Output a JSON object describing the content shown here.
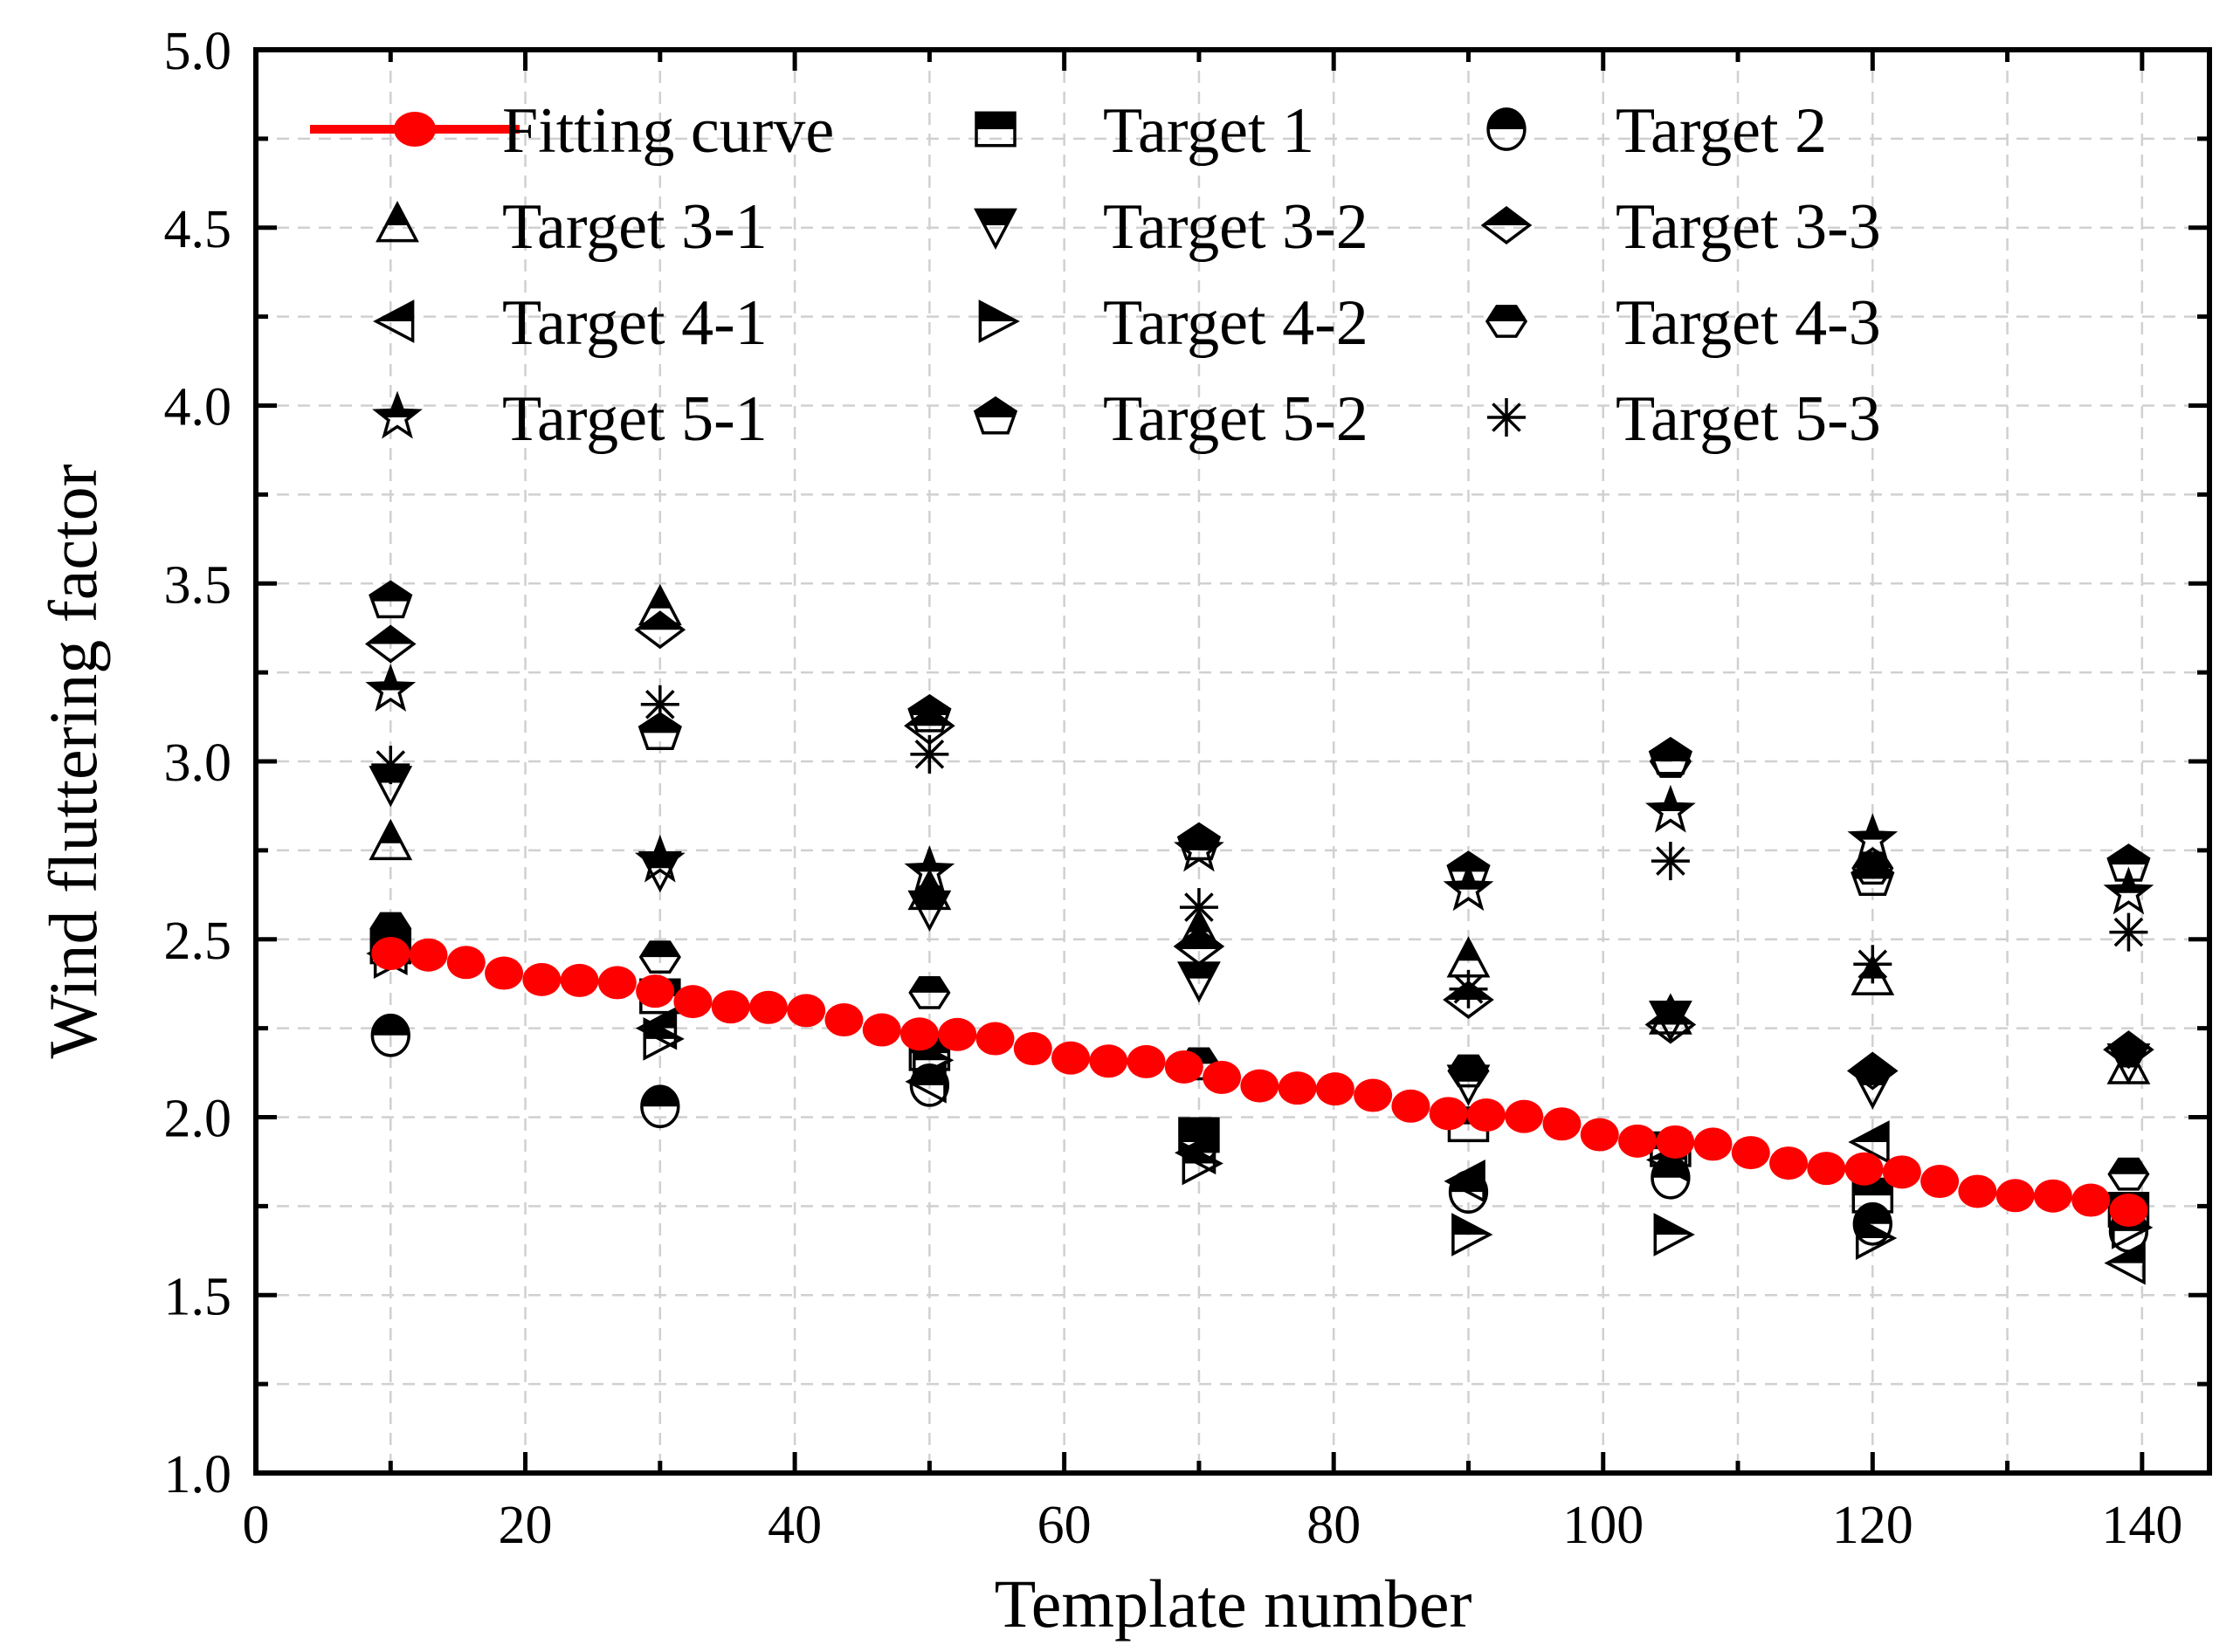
{
  "chart_data": {
    "type": "scatter",
    "xlabel": "Template number",
    "ylabel": "Wind fluttering factor",
    "xlim": [
      0,
      145
    ],
    "ylim": [
      1.0,
      5.0
    ],
    "xticks": [
      0,
      20,
      40,
      60,
      80,
      100,
      120,
      140
    ],
    "yticks": [
      1.0,
      1.5,
      2.0,
      2.5,
      3.0,
      3.5,
      4.0,
      4.5,
      5.0
    ],
    "xtick_labels": [
      "0",
      "20",
      "40",
      "60",
      "80",
      "100",
      "120",
      "140"
    ],
    "ytick_labels": [
      "1.0",
      "1.5",
      "2.0",
      "2.5",
      "3.0",
      "3.5",
      "4.0",
      "4.5",
      "5.0"
    ],
    "grid": true,
    "legend_position": "top",
    "fitting_curve": {
      "name": "Fitting curve",
      "color": "#ff0000",
      "x_start": 10,
      "y_start": 2.46,
      "x_end": 139,
      "y_end": 1.74
    },
    "series": [
      {
        "name": "Target 1",
        "marker": "square",
        "x": [
          10,
          30,
          50,
          70,
          90,
          105,
          120,
          139
        ],
        "y": [
          2.48,
          2.34,
          2.18,
          1.95,
          1.98,
          1.91,
          1.78,
          1.74
        ]
      },
      {
        "name": "Target 2",
        "marker": "circle",
        "x": [
          10,
          30,
          50,
          70,
          90,
          105,
          120,
          139
        ],
        "y": [
          2.23,
          2.03,
          2.09,
          1.93,
          1.79,
          1.83,
          1.7,
          1.68
        ]
      },
      {
        "name": "Target 3-1",
        "marker": "tri-up",
        "x": [
          10,
          30,
          50,
          70,
          90,
          105,
          120,
          139
        ],
        "y": [
          2.77,
          3.43,
          2.63,
          2.52,
          2.44,
          2.28,
          2.39,
          2.14
        ]
      },
      {
        "name": "Target 3-2",
        "marker": "tri-down",
        "x": [
          10,
          30,
          50,
          70,
          90,
          105,
          120,
          139
        ],
        "y": [
          2.94,
          2.7,
          2.59,
          2.39,
          2.1,
          2.28,
          2.09,
          2.16
        ]
      },
      {
        "name": "Target 3-3",
        "marker": "diamond",
        "x": [
          10,
          30,
          50,
          70,
          90,
          105,
          120,
          139
        ],
        "y": [
          3.33,
          3.37,
          3.1,
          2.48,
          2.33,
          2.26,
          2.13,
          2.19
        ]
      },
      {
        "name": "Target 4-1",
        "marker": "tri-left",
        "x": [
          10,
          30,
          50,
          70,
          90,
          105,
          120,
          139
        ],
        "y": [
          2.46,
          2.25,
          2.1,
          1.9,
          1.82,
          1.88,
          1.93,
          1.59
        ]
      },
      {
        "name": "Target 4-2",
        "marker": "tri-right",
        "x": [
          10,
          30,
          50,
          70,
          90,
          105,
          120,
          139
        ],
        "y": [
          2.45,
          2.22,
          2.16,
          1.87,
          1.67,
          1.67,
          1.66,
          1.69
        ]
      },
      {
        "name": "Target 4-3",
        "marker": "hexagon",
        "x": [
          10,
          30,
          50,
          70,
          90,
          105,
          120,
          139
        ],
        "y": [
          2.53,
          2.45,
          2.35,
          2.15,
          2.13,
          3.0,
          2.7,
          1.84
        ]
      },
      {
        "name": "Target 5-1",
        "marker": "star",
        "x": [
          10,
          30,
          50,
          70,
          90,
          105,
          120,
          139
        ],
        "y": [
          3.2,
          2.72,
          2.69,
          2.75,
          2.64,
          2.86,
          2.78,
          2.63
        ]
      },
      {
        "name": "Target 5-2",
        "marker": "pentagon",
        "x": [
          10,
          30,
          50,
          70,
          90,
          105,
          120,
          139
        ],
        "y": [
          3.45,
          3.08,
          3.13,
          2.77,
          2.69,
          3.01,
          2.67,
          2.71
        ]
      },
      {
        "name": "Target 5-3",
        "marker": "asterisk",
        "x": [
          10,
          30,
          50,
          70,
          90,
          105,
          120,
          139
        ],
        "y": [
          2.99,
          3.16,
          3.02,
          2.59,
          2.36,
          2.72,
          2.43,
          2.52
        ]
      }
    ]
  }
}
